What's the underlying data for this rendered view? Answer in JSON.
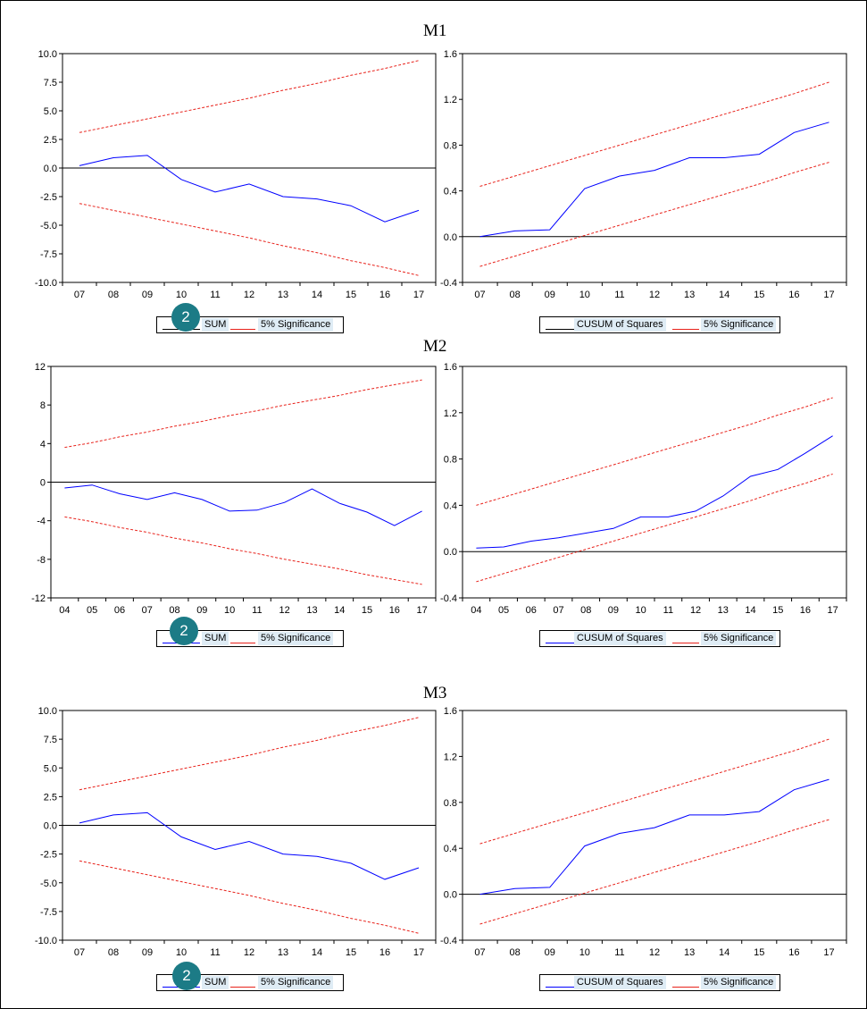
{
  "colors": {
    "series": "#0000ff",
    "bounds": "#e8221b",
    "zero": "#000000",
    "badge": "#1c7b86"
  },
  "legend_common": {
    "significance": "5% Significance"
  },
  "badge_label": "2",
  "panels": [
    {
      "title": "M1",
      "cusum_legend": "SUM",
      "sq_legend": "CUSUM of Squares",
      "chart_data": [
        {
          "type": "line",
          "name": "CUSUM",
          "categories": [
            "07",
            "08",
            "09",
            "10",
            "11",
            "12",
            "13",
            "14",
            "15",
            "16",
            "17"
          ],
          "yticks": [
            "10.0",
            "7.5",
            "5.0",
            "2.5",
            "0.0",
            "-2.5",
            "-5.0",
            "-7.5",
            "-10.0"
          ],
          "ylim": [
            -10,
            10
          ],
          "series": [
            {
              "values": [
                0.2,
                0.9,
                1.1,
                -1.0,
                -2.1,
                -1.4,
                -2.5,
                -2.7,
                -3.3,
                -4.7,
                -3.7
              ],
              "style": "solid"
            },
            {
              "values": [
                3.1,
                3.7,
                4.3,
                4.9,
                5.5,
                6.1,
                6.8,
                7.4,
                8.1,
                8.7,
                9.4
              ],
              "style": "dashed"
            },
            {
              "values": [
                -3.1,
                -3.7,
                -4.3,
                -4.9,
                -5.5,
                -6.1,
                -6.8,
                -7.4,
                -8.1,
                -8.7,
                -9.4
              ],
              "style": "dashed"
            }
          ]
        },
        {
          "type": "line",
          "name": "CUSUM of Squares",
          "categories": [
            "07",
            "08",
            "09",
            "10",
            "11",
            "12",
            "13",
            "14",
            "15",
            "16",
            "17"
          ],
          "yticks": [
            "1.6",
            "1.2",
            "0.8",
            "0.4",
            "0.0",
            "-0.4"
          ],
          "ylim": [
            -0.4,
            1.6
          ],
          "series": [
            {
              "values": [
                0.0,
                0.05,
                0.06,
                0.42,
                0.53,
                0.58,
                0.69,
                0.69,
                0.72,
                0.91,
                1.0
              ],
              "style": "solid"
            },
            {
              "values": [
                0.44,
                0.53,
                0.62,
                0.71,
                0.8,
                0.89,
                0.98,
                1.07,
                1.16,
                1.25,
                1.35
              ],
              "style": "dashed"
            },
            {
              "values": [
                -0.26,
                -0.17,
                -0.08,
                0.01,
                0.1,
                0.19,
                0.28,
                0.37,
                0.46,
                0.56,
                0.65
              ],
              "style": "dashed"
            }
          ]
        }
      ]
    },
    {
      "title": "M2",
      "cusum_legend": "SUM",
      "sq_legend": "CUSUM of Squares",
      "chart_data": [
        {
          "type": "line",
          "name": "CUSUM",
          "categories": [
            "04",
            "05",
            "06",
            "07",
            "08",
            "09",
            "10",
            "11",
            "12",
            "13",
            "14",
            "15",
            "16",
            "17"
          ],
          "yticks": [
            "12",
            "8",
            "4",
            "0",
            "-4",
            "-8",
            "-12"
          ],
          "ylim": [
            -12,
            12
          ],
          "series": [
            {
              "values": [
                -0.6,
                -0.3,
                -1.2,
                -1.8,
                -1.1,
                -1.8,
                -3.0,
                -2.9,
                -2.1,
                -0.7,
                -2.2,
                -3.1,
                -4.5,
                -3.0
              ],
              "style": "solid"
            },
            {
              "values": [
                3.6,
                4.1,
                4.7,
                5.2,
                5.8,
                6.3,
                6.9,
                7.4,
                8.0,
                8.5,
                9.0,
                9.6,
                10.1,
                10.6
              ],
              "style": "dashed"
            },
            {
              "values": [
                -3.6,
                -4.1,
                -4.7,
                -5.2,
                -5.8,
                -6.3,
                -6.9,
                -7.4,
                -8.0,
                -8.5,
                -9.0,
                -9.6,
                -10.1,
                -10.6
              ],
              "style": "dashed"
            }
          ]
        },
        {
          "type": "line",
          "name": "CUSUM of Squares",
          "categories": [
            "04",
            "05",
            "06",
            "07",
            "08",
            "09",
            "10",
            "11",
            "12",
            "13",
            "14",
            "15",
            "16",
            "17"
          ],
          "yticks": [
            "1.6",
            "1.2",
            "0.8",
            "0.4",
            "0.0",
            "-0.4"
          ],
          "ylim": [
            -0.4,
            1.6
          ],
          "series": [
            {
              "values": [
                0.03,
                0.04,
                0.09,
                0.12,
                0.16,
                0.2,
                0.3,
                0.3,
                0.35,
                0.48,
                0.65,
                0.71,
                0.85,
                1.0
              ],
              "style": "solid"
            },
            {
              "values": [
                0.4,
                0.47,
                0.54,
                0.61,
                0.68,
                0.75,
                0.82,
                0.89,
                0.96,
                1.03,
                1.1,
                1.18,
                1.25,
                1.33
              ],
              "style": "dashed"
            },
            {
              "values": [
                -0.26,
                -0.19,
                -0.12,
                -0.05,
                0.02,
                0.09,
                0.16,
                0.23,
                0.3,
                0.37,
                0.44,
                0.52,
                0.59,
                0.67
              ],
              "style": "dashed"
            }
          ]
        }
      ]
    },
    {
      "title": "M3",
      "cusum_legend": "SUM",
      "sq_legend": "CUSUM of Squares",
      "chart_data": [
        {
          "type": "line",
          "name": "CUSUM",
          "categories": [
            "07",
            "08",
            "09",
            "10",
            "11",
            "12",
            "13",
            "14",
            "15",
            "16",
            "17"
          ],
          "yticks": [
            "10.0",
            "7.5",
            "5.0",
            "2.5",
            "0.0",
            "-2.5",
            "-5.0",
            "-7.5",
            "-10.0"
          ],
          "ylim": [
            -10,
            10
          ],
          "series": [
            {
              "values": [
                0.2,
                0.9,
                1.1,
                -1.0,
                -2.1,
                -1.4,
                -2.5,
                -2.7,
                -3.3,
                -4.7,
                -3.7
              ],
              "style": "solid"
            },
            {
              "values": [
                3.1,
                3.7,
                4.3,
                4.9,
                5.5,
                6.1,
                6.8,
                7.4,
                8.1,
                8.7,
                9.4
              ],
              "style": "dashed"
            },
            {
              "values": [
                -3.1,
                -3.7,
                -4.3,
                -4.9,
                -5.5,
                -6.1,
                -6.8,
                -7.4,
                -8.1,
                -8.7,
                -9.4
              ],
              "style": "dashed"
            }
          ]
        },
        {
          "type": "line",
          "name": "CUSUM of Squares",
          "categories": [
            "07",
            "08",
            "09",
            "10",
            "11",
            "12",
            "13",
            "14",
            "15",
            "16",
            "17"
          ],
          "yticks": [
            "1.6",
            "1.2",
            "0.8",
            "0.4",
            "0.0",
            "-0.4"
          ],
          "ylim": [
            -0.4,
            1.6
          ],
          "series": [
            {
              "values": [
                0.0,
                0.05,
                0.06,
                0.42,
                0.53,
                0.58,
                0.69,
                0.69,
                0.72,
                0.91,
                1.0
              ],
              "style": "solid"
            },
            {
              "values": [
                0.44,
                0.53,
                0.62,
                0.71,
                0.8,
                0.89,
                0.98,
                1.07,
                1.16,
                1.25,
                1.35
              ],
              "style": "dashed"
            },
            {
              "values": [
                -0.26,
                -0.17,
                -0.08,
                0.01,
                0.1,
                0.19,
                0.28,
                0.37,
                0.46,
                0.56,
                0.65
              ],
              "style": "dashed"
            }
          ]
        }
      ]
    }
  ]
}
